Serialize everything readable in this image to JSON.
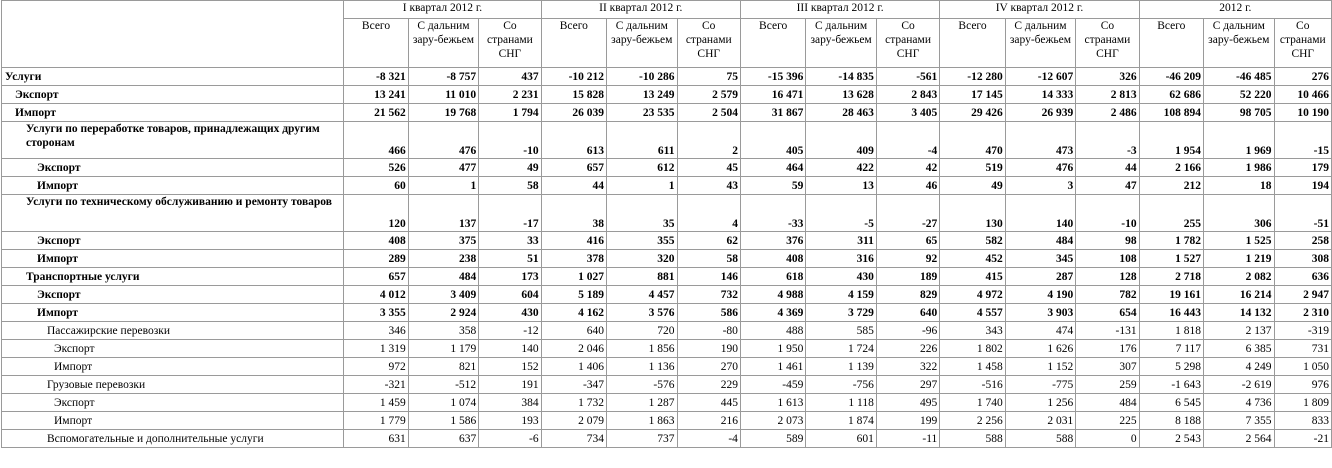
{
  "header": {
    "periods": [
      "I квартал 2012 г.",
      "II квартал 2012 г.",
      "III квартал 2012 г.",
      "IV квартал 2012 г.",
      "2012 г."
    ],
    "sub": [
      "Всего",
      "С дальним зару-бежьем",
      "Со странами СНГ"
    ]
  },
  "rows": [
    {
      "label": "Услуги",
      "values": [
        "-8 321",
        "-8 757",
        "437",
        "-10 212",
        "-10 286",
        "75",
        "-15 396",
        "-14 835",
        "-561",
        "-12 280",
        "-12 607",
        "326",
        "-46 209",
        "-46 485",
        "276"
      ]
    },
    {
      "label": "Экспорт",
      "values": [
        "13 241",
        "11 010",
        "2 231",
        "15 828",
        "13 249",
        "2 579",
        "16 471",
        "13 628",
        "2 843",
        "17 145",
        "14 333",
        "2 813",
        "62 686",
        "52 220",
        "10 466"
      ]
    },
    {
      "label": "Импорт",
      "values": [
        "21 562",
        "19 768",
        "1 794",
        "26 039",
        "23 535",
        "2 504",
        "31 867",
        "28 463",
        "3 405",
        "29 426",
        "26 939",
        "2 486",
        "108 894",
        "98 705",
        "10 190"
      ]
    },
    {
      "label": "Услуги по переработке товаров, принадлежащих другим сторонам",
      "values": [
        "466",
        "476",
        "-10",
        "613",
        "611",
        "2",
        "405",
        "409",
        "-4",
        "470",
        "473",
        "-3",
        "1 954",
        "1 969",
        "-15"
      ]
    },
    {
      "label": "Экспорт",
      "values": [
        "526",
        "477",
        "49",
        "657",
        "612",
        "45",
        "464",
        "422",
        "42",
        "519",
        "476",
        "44",
        "2 166",
        "1 986",
        "179"
      ]
    },
    {
      "label": "Импорт",
      "values": [
        "60",
        "1",
        "58",
        "44",
        "1",
        "43",
        "59",
        "13",
        "46",
        "49",
        "3",
        "47",
        "212",
        "18",
        "194"
      ]
    },
    {
      "label": "Услуги по техническому обслуживанию и ремонту товаров",
      "values": [
        "120",
        "137",
        "-17",
        "38",
        "35",
        "4",
        "-33",
        "-5",
        "-27",
        "130",
        "140",
        "-10",
        "255",
        "306",
        "-51"
      ]
    },
    {
      "label": "Экспорт",
      "values": [
        "408",
        "375",
        "33",
        "416",
        "355",
        "62",
        "376",
        "311",
        "65",
        "582",
        "484",
        "98",
        "1 782",
        "1 525",
        "258"
      ]
    },
    {
      "label": "Импорт",
      "values": [
        "289",
        "238",
        "51",
        "378",
        "320",
        "58",
        "408",
        "316",
        "92",
        "452",
        "345",
        "108",
        "1 527",
        "1 219",
        "308"
      ]
    },
    {
      "label": "Транспортные услуги",
      "values": [
        "657",
        "484",
        "173",
        "1 027",
        "881",
        "146",
        "618",
        "430",
        "189",
        "415",
        "287",
        "128",
        "2 718",
        "2 082",
        "636"
      ]
    },
    {
      "label": "Экспорт",
      "values": [
        "4 012",
        "3 409",
        "604",
        "5 189",
        "4 457",
        "732",
        "4 988",
        "4 159",
        "829",
        "4 972",
        "4 190",
        "782",
        "19 161",
        "16 214",
        "2 947"
      ]
    },
    {
      "label": "Импорт",
      "values": [
        "3 355",
        "2 924",
        "430",
        "4 162",
        "3 576",
        "586",
        "4 369",
        "3 729",
        "640",
        "4 557",
        "3 903",
        "654",
        "16 443",
        "14 132",
        "2 310"
      ]
    },
    {
      "label": "Пассажирские перевозки",
      "values": [
        "346",
        "358",
        "-12",
        "640",
        "720",
        "-80",
        "488",
        "585",
        "-96",
        "343",
        "474",
        "-131",
        "1 818",
        "2 137",
        "-319"
      ]
    },
    {
      "label": "Экспорт",
      "values": [
        "1 319",
        "1 179",
        "140",
        "2 046",
        "1 856",
        "190",
        "1 950",
        "1 724",
        "226",
        "1 802",
        "1 626",
        "176",
        "7 117",
        "6 385",
        "731"
      ]
    },
    {
      "label": "Импорт",
      "values": [
        "972",
        "821",
        "152",
        "1 406",
        "1 136",
        "270",
        "1 461",
        "1 139",
        "322",
        "1 458",
        "1 152",
        "307",
        "5 298",
        "4 249",
        "1 050"
      ]
    },
    {
      "label": "Грузовые перевозки",
      "values": [
        "-321",
        "-512",
        "191",
        "-347",
        "-576",
        "229",
        "-459",
        "-756",
        "297",
        "-516",
        "-775",
        "259",
        "-1 643",
        "-2 619",
        "976"
      ]
    },
    {
      "label": "Экспорт",
      "values": [
        "1 459",
        "1 074",
        "384",
        "1 732",
        "1 287",
        "445",
        "1 613",
        "1 118",
        "495",
        "1 740",
        "1 256",
        "484",
        "6 545",
        "4 736",
        "1 809"
      ]
    },
    {
      "label": "Импорт",
      "values": [
        "1 779",
        "1 586",
        "193",
        "2 079",
        "1 863",
        "216",
        "2 073",
        "1 874",
        "199",
        "2 256",
        "2 031",
        "225",
        "8 188",
        "7 355",
        "833"
      ]
    },
    {
      "label": "Вспомогательные и дополнительные услуги",
      "values": [
        "631",
        "637",
        "-6",
        "734",
        "737",
        "-4",
        "589",
        "601",
        "-11",
        "588",
        "588",
        "0",
        "2 543",
        "2 564",
        "-21"
      ]
    }
  ]
}
